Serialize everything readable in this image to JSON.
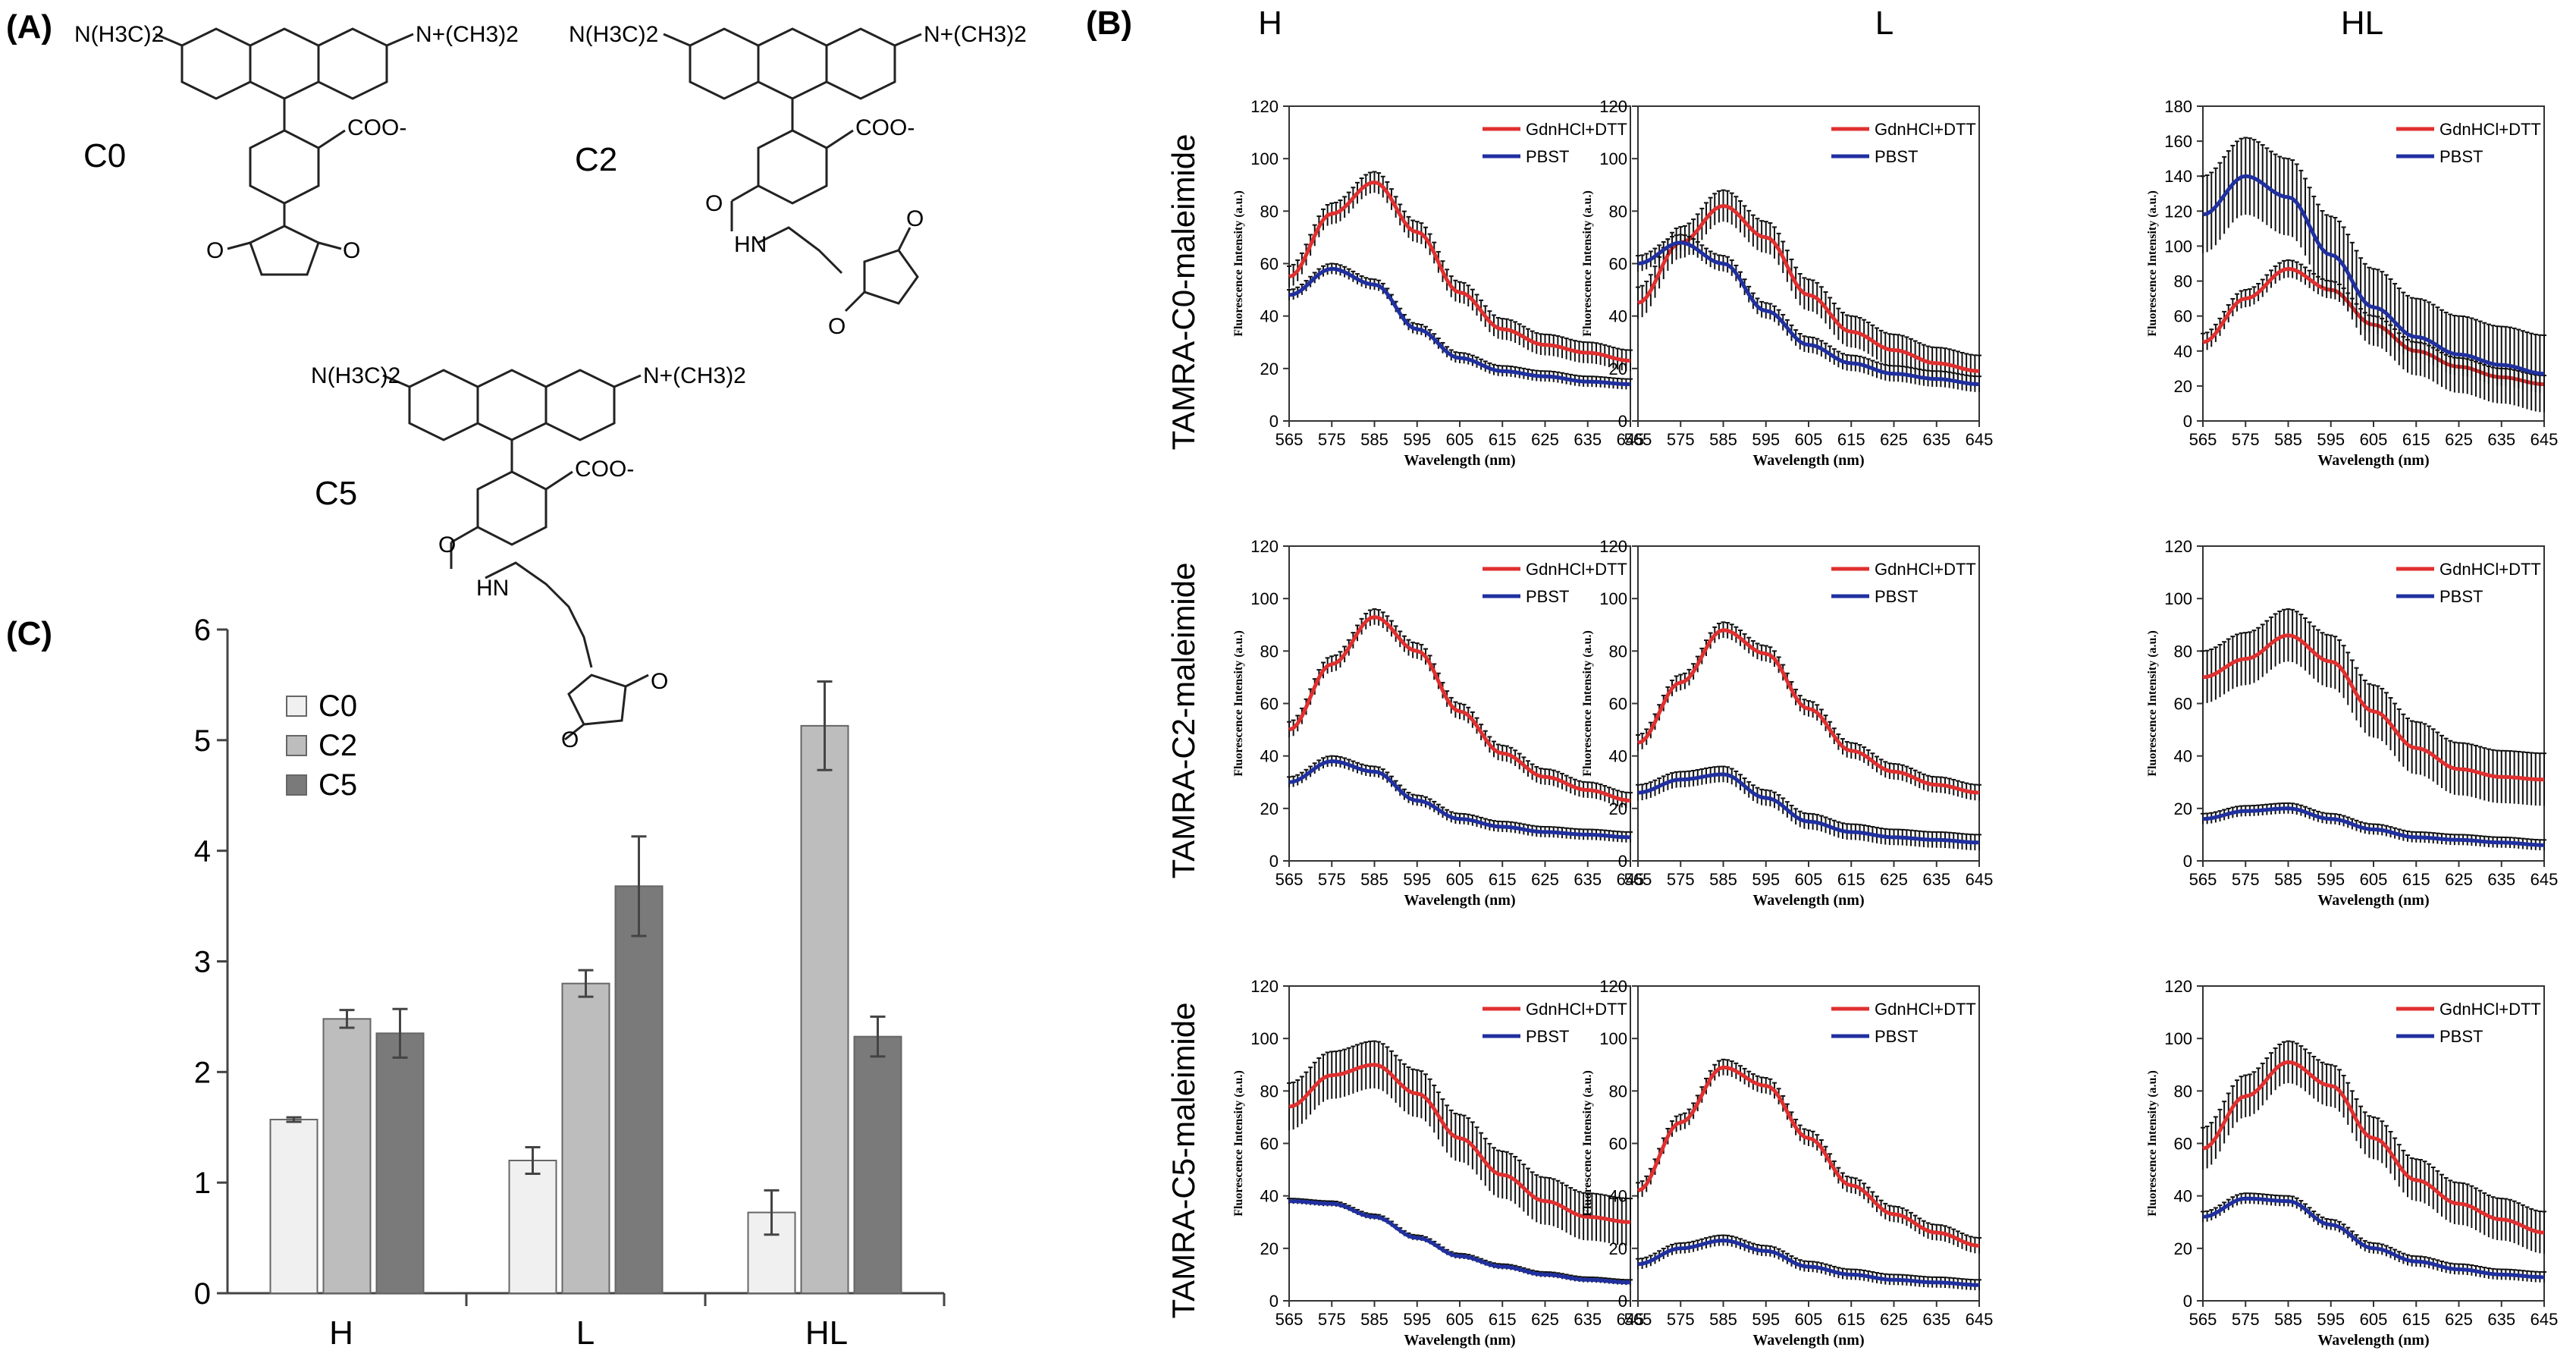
{
  "panels": {
    "a": "(A)",
    "b": "(B)",
    "c": "(C)"
  },
  "structures": [
    {
      "name": "C0",
      "left_group": "N(H3C)2",
      "right_group": "N+(CH3)2",
      "acid": "COO-",
      "amide": "",
      "amine": ""
    },
    {
      "name": "C2",
      "left_group": "N(H3C)2",
      "right_group": "N+(CH3)2",
      "acid": "COO-",
      "amide": "O",
      "amine": "HN"
    },
    {
      "name": "C5",
      "left_group": "N(H3C)2",
      "right_group": "N+(CH3)2",
      "acid": "COO-",
      "amide": "O",
      "amine": "HN"
    }
  ],
  "maleimide_o": "O",
  "colors": {
    "red": "#e03030",
    "blue": "#2030a0",
    "err": "#111111",
    "c0": "#f0f0f0",
    "c2": "#bdbdbd",
    "c5": "#7a7a7a"
  },
  "grid_cols": [
    "H",
    "L",
    "HL"
  ],
  "grid_rows": [
    "TAMRA-C0-maleimide",
    "TAMRA-C2-maleimide",
    "TAMRA-C5-maleimide"
  ],
  "spectrum_axes": {
    "xlabel": "Wavelength (nm)",
    "ylabel": "Fluorescence Intensity (a.u.)",
    "x_ticks": [
      565,
      575,
      585,
      595,
      605,
      615,
      625,
      635,
      645
    ],
    "legend": [
      "GdnHCl+DTT",
      "PBST"
    ]
  },
  "chart_data": [
    {
      "type": "bar",
      "panel": "C",
      "categories": [
        "H",
        "L",
        "HL"
      ],
      "series": [
        {
          "name": "C0",
          "values": [
            1.57,
            1.2,
            0.73
          ],
          "errors": [
            0.02,
            0.12,
            0.2
          ]
        },
        {
          "name": "C2",
          "values": [
            2.48,
            2.8,
            5.13
          ],
          "errors": [
            0.08,
            0.12,
            0.4
          ]
        },
        {
          "name": "C5",
          "values": [
            2.35,
            3.68,
            2.32
          ],
          "errors": [
            0.22,
            0.45,
            0.18
          ]
        }
      ],
      "ylim": [
        0,
        6
      ],
      "y_ticks": [
        0,
        1,
        2,
        3,
        4,
        5,
        6
      ],
      "legend_position": "top-left"
    },
    {
      "type": "line",
      "row": "TAMRA-C0-maleimide",
      "col": "H",
      "ylim": [
        0,
        120
      ],
      "y_ticks": [
        0,
        20,
        40,
        60,
        80,
        100,
        120
      ],
      "x": [
        565,
        575,
        585,
        595,
        605,
        615,
        625,
        635,
        645
      ],
      "series": [
        {
          "name": "GdnHCl+DTT",
          "values": [
            55,
            79,
            91,
            72,
            49,
            35,
            29,
            26,
            23
          ],
          "error": 4
        },
        {
          "name": "PBST",
          "values": [
            48,
            58,
            52,
            35,
            24,
            19,
            17,
            15,
            14
          ],
          "error": 2
        }
      ]
    },
    {
      "type": "line",
      "row": "TAMRA-C0-maleimide",
      "col": "L",
      "ylim": [
        0,
        120
      ],
      "y_ticks": [
        0,
        20,
        40,
        60,
        80,
        100,
        120
      ],
      "x": [
        565,
        575,
        585,
        595,
        605,
        615,
        625,
        635,
        645
      ],
      "series": [
        {
          "name": "GdnHCl+DTT",
          "values": [
            45,
            68,
            82,
            70,
            48,
            34,
            27,
            22,
            19
          ],
          "error": 6
        },
        {
          "name": "PBST",
          "values": [
            60,
            68,
            60,
            42,
            29,
            22,
            18,
            16,
            14
          ],
          "error": 3
        }
      ]
    },
    {
      "type": "line",
      "row": "TAMRA-C0-maleimide",
      "col": "HL",
      "ylim": [
        0,
        180
      ],
      "y_ticks": [
        0,
        20,
        40,
        60,
        80,
        100,
        120,
        140,
        160,
        180
      ],
      "x": [
        565,
        575,
        585,
        595,
        605,
        615,
        625,
        635,
        645
      ],
      "series": [
        {
          "name": "GdnHCl+DTT",
          "values": [
            45,
            70,
            87,
            75,
            55,
            40,
            31,
            25,
            21
          ],
          "error": 5
        },
        {
          "name": "PBST",
          "values": [
            118,
            140,
            128,
            95,
            65,
            48,
            38,
            32,
            27
          ],
          "error": 22
        }
      ]
    },
    {
      "type": "line",
      "row": "TAMRA-C2-maleimide",
      "col": "H",
      "ylim": [
        0,
        120
      ],
      "y_ticks": [
        0,
        20,
        40,
        60,
        80,
        100,
        120
      ],
      "x": [
        565,
        575,
        585,
        595,
        605,
        615,
        625,
        635,
        645
      ],
      "series": [
        {
          "name": "GdnHCl+DTT",
          "values": [
            50,
            75,
            93,
            80,
            57,
            41,
            32,
            27,
            23
          ],
          "error": 3
        },
        {
          "name": "PBST",
          "values": [
            30,
            38,
            34,
            23,
            16,
            13,
            11,
            10,
            9
          ],
          "error": 2
        }
      ]
    },
    {
      "type": "line",
      "row": "TAMRA-C2-maleimide",
      "col": "L",
      "ylim": [
        0,
        120
      ],
      "y_ticks": [
        0,
        20,
        40,
        60,
        80,
        100,
        120
      ],
      "x": [
        565,
        575,
        585,
        595,
        605,
        615,
        625,
        635,
        645
      ],
      "series": [
        {
          "name": "GdnHCl+DTT",
          "values": [
            45,
            68,
            88,
            79,
            58,
            42,
            34,
            29,
            26
          ],
          "error": 3
        },
        {
          "name": "PBST",
          "values": [
            26,
            31,
            33,
            24,
            15,
            11,
            9,
            8,
            7
          ],
          "error": 3
        }
      ]
    },
    {
      "type": "line",
      "row": "TAMRA-C2-maleimide",
      "col": "HL",
      "ylim": [
        0,
        120
      ],
      "y_ticks": [
        0,
        20,
        40,
        60,
        80,
        100,
        120
      ],
      "x": [
        565,
        575,
        585,
        595,
        605,
        615,
        625,
        635,
        645
      ],
      "series": [
        {
          "name": "GdnHCl+DTT",
          "values": [
            70,
            77,
            86,
            76,
            57,
            43,
            35,
            32,
            31
          ],
          "error": 10
        },
        {
          "name": "PBST",
          "values": [
            16,
            19,
            20,
            16,
            12,
            9,
            8,
            7,
            6
          ],
          "error": 2
        }
      ]
    },
    {
      "type": "line",
      "row": "TAMRA-C5-maleimide",
      "col": "H",
      "ylim": [
        0,
        120
      ],
      "y_ticks": [
        0,
        20,
        40,
        60,
        80,
        100,
        120
      ],
      "x": [
        565,
        575,
        585,
        595,
        605,
        615,
        625,
        635,
        645
      ],
      "series": [
        {
          "name": "GdnHCl+DTT",
          "values": [
            74,
            86,
            90,
            79,
            62,
            48,
            38,
            32,
            30
          ],
          "error": 9
        },
        {
          "name": "PBST",
          "values": [
            38,
            37,
            32,
            24,
            17,
            13,
            10,
            8,
            7
          ],
          "error": 1
        }
      ]
    },
    {
      "type": "line",
      "row": "TAMRA-C5-maleimide",
      "col": "L",
      "ylim": [
        0,
        120
      ],
      "y_ticks": [
        0,
        20,
        40,
        60,
        80,
        100,
        120
      ],
      "x": [
        565,
        575,
        585,
        595,
        605,
        615,
        625,
        635,
        645
      ],
      "series": [
        {
          "name": "GdnHCl+DTT",
          "values": [
            42,
            68,
            89,
            82,
            62,
            44,
            33,
            26,
            21
          ],
          "error": 3
        },
        {
          "name": "PBST",
          "values": [
            14,
            20,
            23,
            19,
            13,
            10,
            8,
            7,
            6
          ],
          "error": 2
        }
      ]
    },
    {
      "type": "line",
      "row": "TAMRA-C5-maleimide",
      "col": "HL",
      "ylim": [
        0,
        120
      ],
      "y_ticks": [
        0,
        20,
        40,
        60,
        80,
        100,
        120
      ],
      "x": [
        565,
        575,
        585,
        595,
        605,
        615,
        625,
        635,
        645
      ],
      "series": [
        {
          "name": "GdnHCl+DTT",
          "values": [
            58,
            78,
            91,
            82,
            62,
            46,
            37,
            31,
            26
          ],
          "error": 8
        },
        {
          "name": "PBST",
          "values": [
            32,
            39,
            38,
            29,
            20,
            15,
            12,
            10,
            9
          ],
          "error": 2
        }
      ]
    }
  ]
}
